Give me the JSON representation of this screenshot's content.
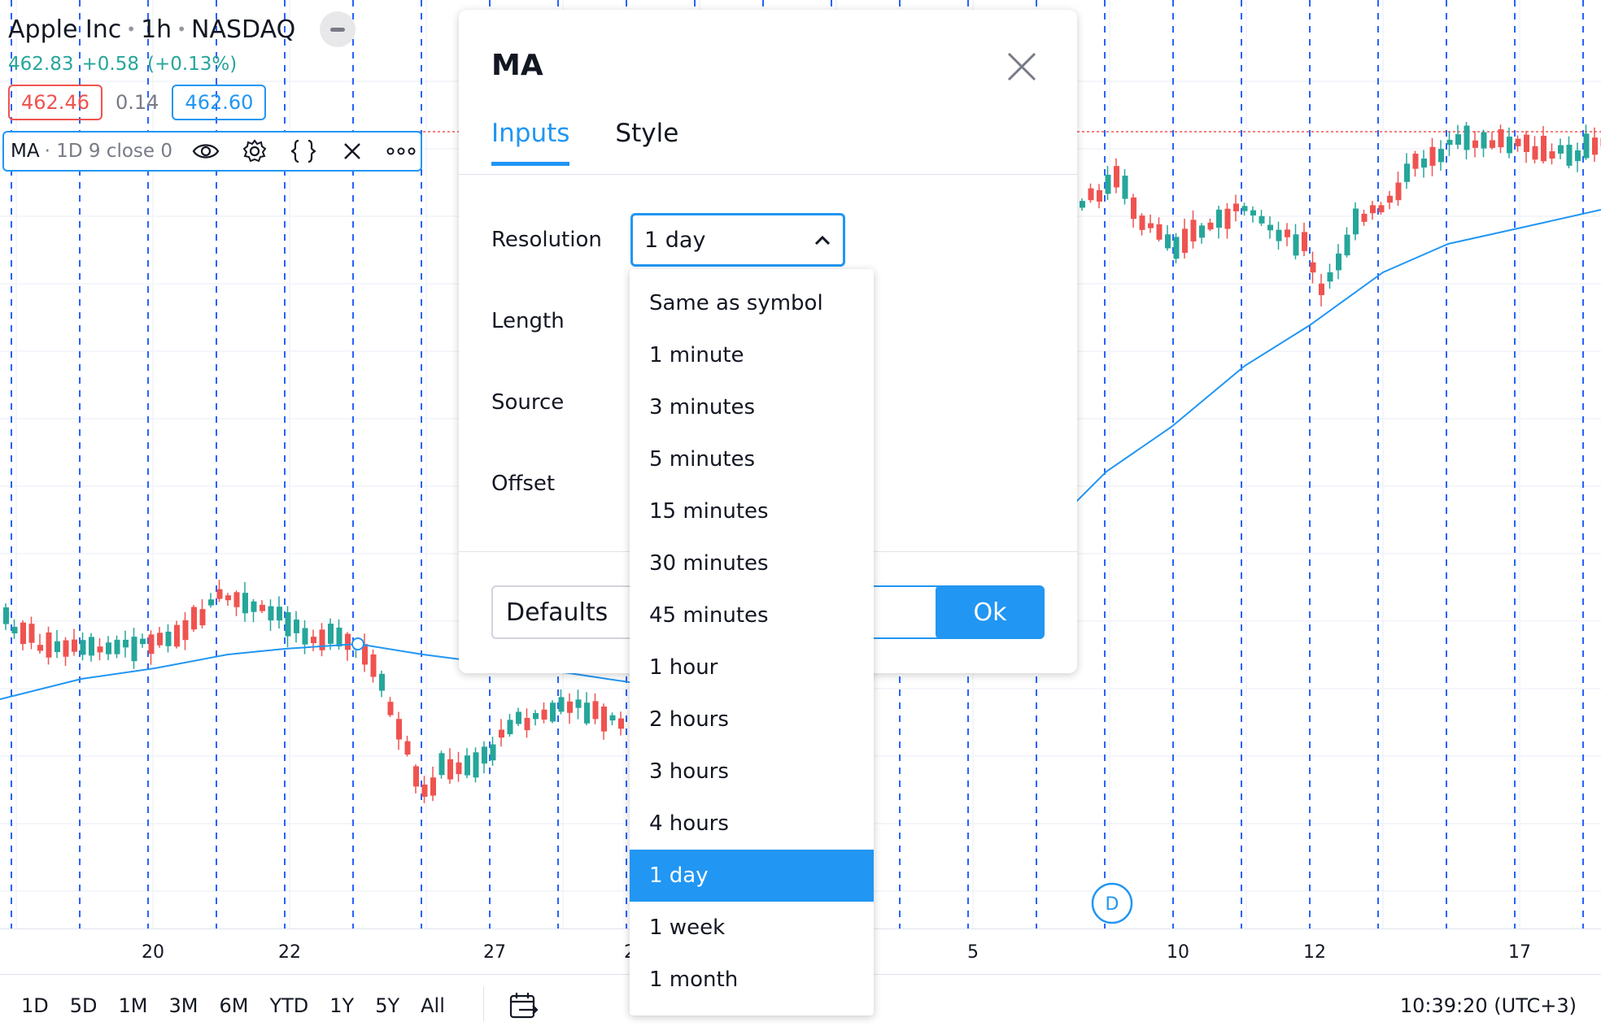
{
  "legend": {
    "symbol": "Apple Inc",
    "interval": "1h",
    "exchange": "NASDAQ",
    "last": "462.83",
    "change": "+0.58",
    "change_pct": "(+0.13%)",
    "bid": "462.46",
    "spread": "0.14",
    "ask": "462.60"
  },
  "indicator": {
    "title": "MA",
    "args": "· 1D 9 close 0"
  },
  "colors": {
    "up": "#26a69a",
    "down": "#ef5350",
    "accent": "#2196f3",
    "ma_line": "#2196f3"
  },
  "time_axis": {
    "labels": [
      "20",
      "22",
      "27",
      "2",
      "5",
      "10",
      "12",
      "17"
    ]
  },
  "chart_markers": {
    "dividend": "D"
  },
  "bottom_bar": {
    "ranges": [
      "1D",
      "5D",
      "1M",
      "3M",
      "6M",
      "YTD",
      "1Y",
      "5Y",
      "All"
    ],
    "clock": "10:39:20 (UTC+3)"
  },
  "dialog": {
    "title": "MA",
    "tabs": [
      "Inputs",
      "Style"
    ],
    "active_tab": "Inputs",
    "fields": [
      "Resolution",
      "Length",
      "Source",
      "Offset"
    ],
    "resolution_value": "1 day",
    "defaults_label": "Defaults",
    "ok_label": "Ok"
  },
  "dropdown": {
    "options": [
      "Same as symbol",
      "1 minute",
      "3 minutes",
      "5 minutes",
      "15 minutes",
      "30 minutes",
      "45 minutes",
      "1 hour",
      "2 hours",
      "3 hours",
      "4 hours",
      "1 day",
      "1 week",
      "1 month"
    ],
    "selected": "1 day"
  }
}
